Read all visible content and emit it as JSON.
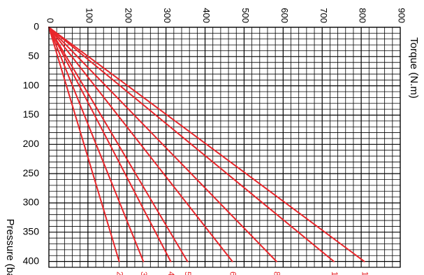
{
  "chart_data": {
    "type": "line",
    "orientation": "rotated-90",
    "xlabel": "Pressure (bar)",
    "ylabel": "Torque (N.m)",
    "xlim": [
      0,
      410
    ],
    "ylim": [
      0,
      900
    ],
    "x_ticks": [
      0,
      50,
      100,
      150,
      200,
      250,
      300,
      350,
      400
    ],
    "y_ticks": [
      0,
      100,
      200,
      300,
      400,
      500,
      600,
      700,
      800,
      900
    ],
    "x_minor_step": 10,
    "y_minor_step": 20,
    "grid": true,
    "line_color": "#e8262b",
    "series": [
      {
        "points": [
          [
            0,
            0
          ],
          [
            400,
            180
          ]
        ],
        "end_mark": "2"
      },
      {
        "points": [
          [
            0,
            0
          ],
          [
            400,
            242
          ]
        ],
        "end_mark": "3"
      },
      {
        "points": [
          [
            0,
            0
          ],
          [
            400,
            312
          ]
        ],
        "end_mark": "4"
      },
      {
        "points": [
          [
            0,
            0
          ],
          [
            400,
            355
          ]
        ],
        "end_mark": "5"
      },
      {
        "points": [
          [
            0,
            0
          ],
          [
            400,
            470
          ]
        ],
        "end_mark": "6"
      },
      {
        "points": [
          [
            0,
            0
          ],
          [
            400,
            583
          ]
        ],
        "end_mark": "8"
      },
      {
        "points": [
          [
            0,
            0
          ],
          [
            400,
            730
          ]
        ],
        "end_mark": "1"
      },
      {
        "points": [
          [
            0,
            0
          ],
          [
            400,
            808
          ]
        ],
        "end_mark": "1"
      }
    ]
  }
}
